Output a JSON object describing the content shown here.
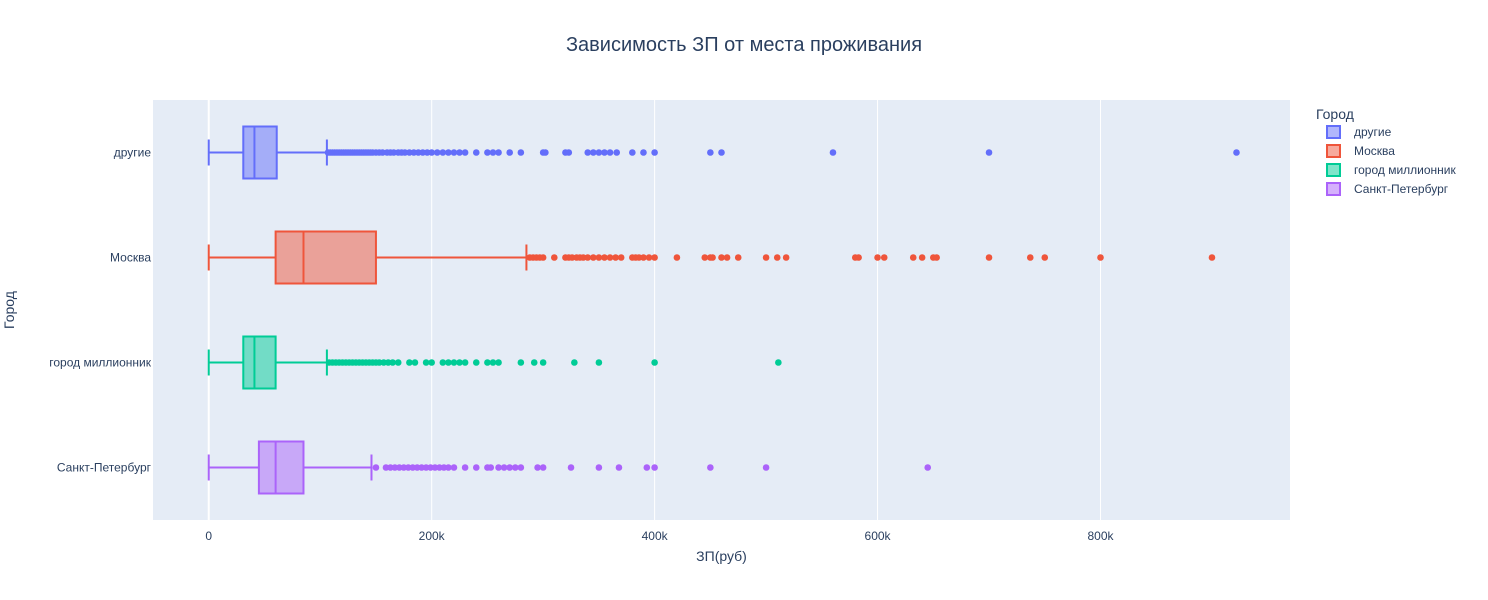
{
  "chart_data": {
    "type": "box",
    "orientation": "horizontal",
    "title": "Зависимость ЗП от места проживания",
    "xlabel": "ЗП(руб)",
    "ylabel": "Город",
    "xlim": [
      -50000,
      970000
    ],
    "x_ticks": [
      0,
      200000,
      400000,
      600000,
      800000
    ],
    "x_tick_labels": [
      "0",
      "200k",
      "400k",
      "600k",
      "800k"
    ],
    "grid": true,
    "legend_title": "Город",
    "legend_position": "top-right",
    "categories": [
      "другие",
      "Москва",
      "город миллионник",
      "Санкт-Петербург"
    ],
    "series": [
      {
        "name": "другие",
        "color": "#636efa",
        "fill": "rgba(99,110,250,0.5)",
        "min": 0,
        "q1": 31000,
        "median": 41000,
        "q3": 61000,
        "upper_fence": 106000,
        "outliers": [
          107000,
          109000,
          111000,
          113000,
          115000,
          117000,
          119000,
          121000,
          123000,
          125000,
          127000,
          129000,
          131000,
          133000,
          135000,
          137000,
          139000,
          141000,
          143000,
          145000,
          147000,
          150000,
          153000,
          156000,
          160000,
          163000,
          166000,
          170000,
          173000,
          176000,
          180000,
          184000,
          188000,
          192000,
          196000,
          200000,
          205000,
          210000,
          215000,
          220000,
          225000,
          230000,
          240000,
          250000,
          255000,
          260000,
          270000,
          280000,
          300000,
          302000,
          320000,
          323000,
          340000,
          345000,
          350000,
          355000,
          360000,
          366000,
          380000,
          390000,
          400000,
          450000,
          460000,
          560000,
          700000,
          922000
        ]
      },
      {
        "name": "Москва",
        "color": "#ef553b",
        "fill": "rgba(239,85,59,0.5)",
        "min": 0,
        "q1": 60000,
        "median": 85000,
        "q3": 150000,
        "upper_fence": 285000,
        "outliers": [
          288000,
          291000,
          294000,
          297000,
          300000,
          310000,
          320000,
          323000,
          326000,
          330000,
          333000,
          336000,
          340000,
          345000,
          350000,
          355000,
          360000,
          365000,
          370000,
          380000,
          383000,
          386000,
          390000,
          395000,
          400000,
          420000,
          445000,
          450000,
          452000,
          460000,
          465000,
          475000,
          500000,
          510000,
          518000,
          580000,
          583000,
          600000,
          606000,
          632000,
          640000,
          650000,
          653000,
          700000,
          737000,
          750000,
          800000,
          900000
        ]
      },
      {
        "name": "город миллионник",
        "color": "#00cc96",
        "fill": "rgba(0,204,150,0.5)",
        "min": 0,
        "q1": 31000,
        "median": 41000,
        "q3": 60000,
        "upper_fence": 106000,
        "outliers": [
          108000,
          111000,
          114000,
          117000,
          120000,
          123000,
          126000,
          129000,
          132000,
          135000,
          138000,
          141000,
          144000,
          147000,
          150000,
          153000,
          157000,
          161000,
          165000,
          170000,
          180000,
          185000,
          195000,
          200000,
          210000,
          215000,
          220000,
          225000,
          230000,
          240000,
          250000,
          255000,
          260000,
          280000,
          292000,
          300000,
          328000,
          350000,
          400000,
          511000
        ]
      },
      {
        "name": "Санкт-Петербург",
        "color": "#ab63fa",
        "fill": "rgba(171,99,250,0.5)",
        "min": 0,
        "q1": 45000,
        "median": 60000,
        "q3": 85000,
        "upper_fence": 146000,
        "outliers": [
          150000,
          159000,
          163000,
          167000,
          171000,
          175000,
          179000,
          183000,
          187000,
          191000,
          195000,
          199000,
          203000,
          207000,
          211000,
          215000,
          220000,
          230000,
          240000,
          250000,
          253000,
          260000,
          265000,
          270000,
          275000,
          280000,
          295000,
          300000,
          325000,
          350000,
          368000,
          393000,
          400000,
          450000,
          500000,
          645000
        ]
      }
    ]
  }
}
